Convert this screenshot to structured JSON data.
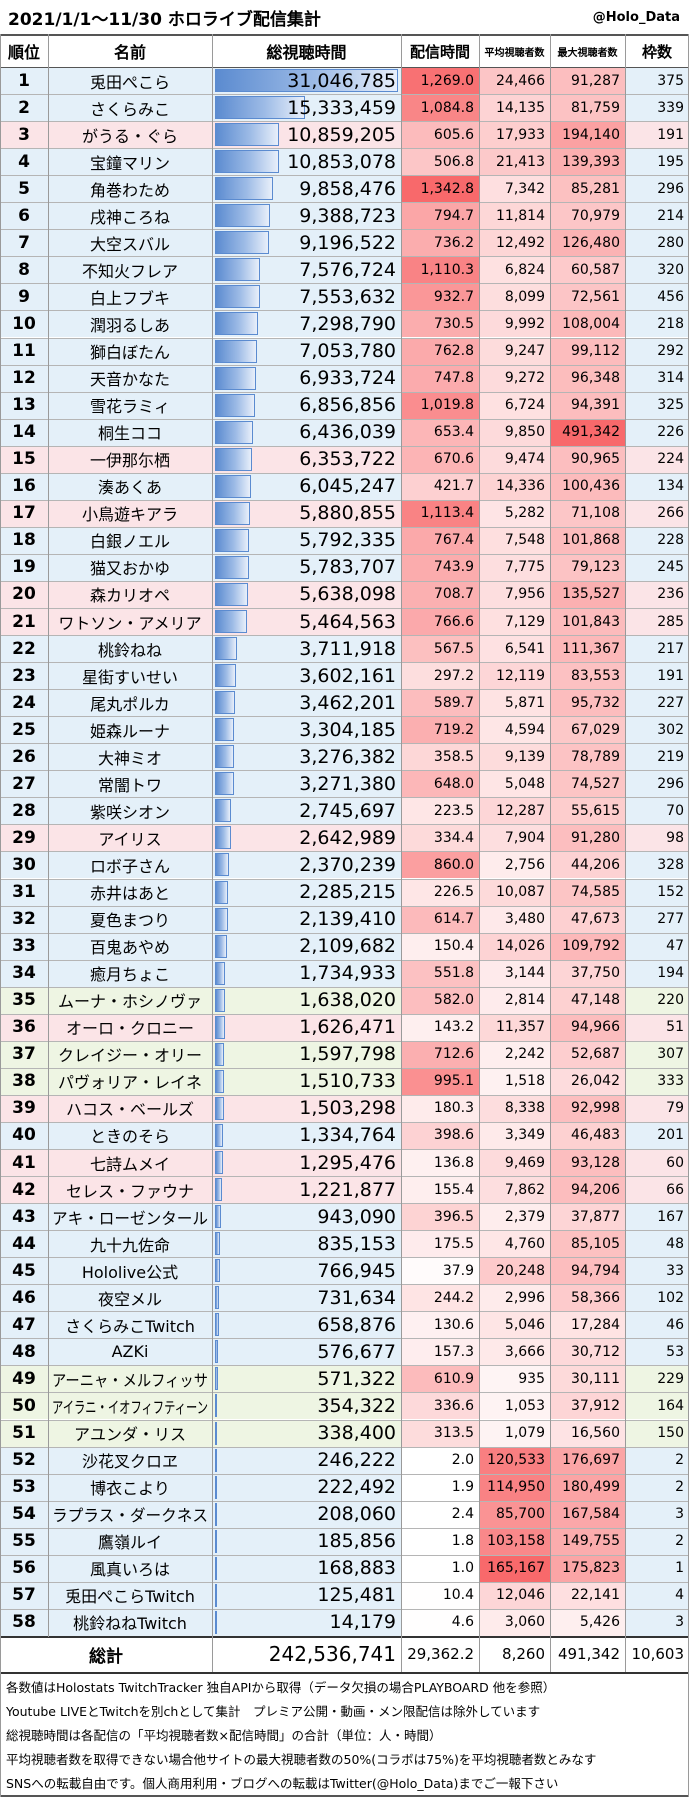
{
  "header": {
    "title": "2021/1/1～11/30 ホロライブ配信集計",
    "account": "@Holo_Data"
  },
  "table": {
    "columns": [
      "順位",
      "名前",
      "総視聴時間",
      "配信時間",
      "平均視聴者数",
      "最大視聴者数",
      "枠数"
    ],
    "rows": [
      [
        "1",
        "兎田ぺこら",
        "31,046,785",
        "1,269.0",
        "24,466",
        "91,287",
        "375"
      ],
      [
        "2",
        "さくらみこ",
        "15,333,459",
        "1,084.8",
        "14,135",
        "81,759",
        "339"
      ],
      [
        "3",
        "がうる・ぐら",
        "10,859,205",
        "605.6",
        "17,933",
        "194,140",
        "191"
      ],
      [
        "4",
        "宝鐘マリン",
        "10,853,078",
        "506.8",
        "21,413",
        "139,393",
        "195"
      ],
      [
        "5",
        "角巻わため",
        "9,858,476",
        "1,342.8",
        "7,342",
        "85,281",
        "296"
      ],
      [
        "6",
        "戌神ころね",
        "9,388,723",
        "794.7",
        "11,814",
        "70,979",
        "214"
      ],
      [
        "7",
        "大空スバル",
        "9,196,522",
        "736.2",
        "12,492",
        "126,480",
        "280"
      ],
      [
        "8",
        "不知火フレア",
        "7,576,724",
        "1,110.3",
        "6,824",
        "60,587",
        "320"
      ],
      [
        "9",
        "白上フブキ",
        "7,553,632",
        "932.7",
        "8,099",
        "72,561",
        "456"
      ],
      [
        "10",
        "潤羽るしあ",
        "7,298,790",
        "730.5",
        "9,992",
        "108,004",
        "218"
      ],
      [
        "11",
        "獅白ぼたん",
        "7,053,780",
        "762.8",
        "9,247",
        "99,112",
        "292"
      ],
      [
        "12",
        "天音かなた",
        "6,933,724",
        "747.8",
        "9,272",
        "96,348",
        "314"
      ],
      [
        "13",
        "雪花ラミィ",
        "6,856,856",
        "1,019.8",
        "6,724",
        "94,391",
        "325"
      ],
      [
        "14",
        "桐生ココ",
        "6,436,039",
        "653.4",
        "9,850",
        "491,342",
        "226"
      ],
      [
        "15",
        "一伊那尓栖",
        "6,353,722",
        "670.6",
        "9,474",
        "90,965",
        "224"
      ],
      [
        "16",
        "湊あくあ",
        "6,045,247",
        "421.7",
        "14,336",
        "100,436",
        "134"
      ],
      [
        "17",
        "小鳥遊キアラ",
        "5,880,855",
        "1,113.4",
        "5,282",
        "71,108",
        "266"
      ],
      [
        "18",
        "白銀ノエル",
        "5,792,335",
        "767.4",
        "7,548",
        "101,868",
        "228"
      ],
      [
        "19",
        "猫又おかゆ",
        "5,783,707",
        "743.9",
        "7,775",
        "79,123",
        "245"
      ],
      [
        "20",
        "森カリオペ",
        "5,638,098",
        "708.7",
        "7,956",
        "135,527",
        "236"
      ],
      [
        "21",
        "ワトソン・アメリア",
        "5,464,563",
        "766.6",
        "7,129",
        "101,843",
        "285"
      ],
      [
        "22",
        "桃鈴ねね",
        "3,711,918",
        "567.5",
        "6,541",
        "111,367",
        "217"
      ],
      [
        "23",
        "星街すいせい",
        "3,602,161",
        "297.2",
        "12,119",
        "83,553",
        "191"
      ],
      [
        "24",
        "尾丸ポルカ",
        "3,462,201",
        "589.7",
        "5,871",
        "95,732",
        "227"
      ],
      [
        "25",
        "姫森ルーナ",
        "3,304,185",
        "719.2",
        "4,594",
        "67,029",
        "302"
      ],
      [
        "26",
        "大神ミオ",
        "3,276,382",
        "358.5",
        "9,139",
        "78,789",
        "219"
      ],
      [
        "27",
        "常闇トワ",
        "3,271,380",
        "648.0",
        "5,048",
        "74,527",
        "296"
      ],
      [
        "28",
        "紫咲シオン",
        "2,745,697",
        "223.5",
        "12,287",
        "55,615",
        "70"
      ],
      [
        "29",
        "アイリス",
        "2,642,989",
        "334.4",
        "7,904",
        "91,280",
        "98"
      ],
      [
        "30",
        "ロボ子さん",
        "2,370,239",
        "860.0",
        "2,756",
        "44,206",
        "328"
      ],
      [
        "31",
        "赤井はあと",
        "2,285,215",
        "226.5",
        "10,087",
        "74,585",
        "152"
      ],
      [
        "32",
        "夏色まつり",
        "2,139,410",
        "614.7",
        "3,480",
        "47,673",
        "277"
      ],
      [
        "33",
        "百鬼あやめ",
        "2,109,682",
        "150.4",
        "14,026",
        "109,792",
        "47"
      ],
      [
        "34",
        "癒月ちょこ",
        "1,734,933",
        "551.8",
        "3,144",
        "37,750",
        "194"
      ],
      [
        "35",
        "ムーナ・ホシノヴァ",
        "1,638,020",
        "582.0",
        "2,814",
        "47,148",
        "220"
      ],
      [
        "36",
        "オーロ・クロニー",
        "1,626,471",
        "143.2",
        "11,357",
        "94,966",
        "51"
      ],
      [
        "37",
        "クレイジー・オリー",
        "1,597,798",
        "712.6",
        "2,242",
        "52,687",
        "307"
      ],
      [
        "38",
        "パヴォリア・レイネ",
        "1,510,733",
        "995.1",
        "1,518",
        "26,042",
        "333"
      ],
      [
        "39",
        "ハコス・ベールズ",
        "1,503,298",
        "180.3",
        "8,338",
        "92,998",
        "79"
      ],
      [
        "40",
        "ときのそら",
        "1,334,764",
        "398.6",
        "3,349",
        "46,483",
        "201"
      ],
      [
        "41",
        "七詩ムメイ",
        "1,295,476",
        "136.8",
        "9,469",
        "93,128",
        "60"
      ],
      [
        "42",
        "セレス・ファウナ",
        "1,221,877",
        "155.4",
        "7,862",
        "94,206",
        "66"
      ],
      [
        "43",
        "アキ・ローゼンタール",
        "943,090",
        "396.5",
        "2,379",
        "37,877",
        "167"
      ],
      [
        "44",
        "九十九佐命",
        "835,153",
        "175.5",
        "4,760",
        "85,105",
        "48"
      ],
      [
        "45",
        "Hololive公式",
        "766,945",
        "37.9",
        "20,248",
        "94,794",
        "33"
      ],
      [
        "46",
        "夜空メル",
        "731,634",
        "244.2",
        "2,996",
        "58,366",
        "102"
      ],
      [
        "47",
        "さくらみこTwitch",
        "658,876",
        "130.6",
        "5,046",
        "17,284",
        "46"
      ],
      [
        "48",
        "AZKi",
        "576,677",
        "157.3",
        "3,666",
        "30,712",
        "53"
      ],
      [
        "49",
        "アーニャ・メルフィッサ",
        "571,322",
        "610.9",
        "935",
        "30,111",
        "229"
      ],
      [
        "50",
        "アイラニ・イオフィフティーン",
        "354,322",
        "336.6",
        "1,053",
        "37,912",
        "164"
      ],
      [
        "51",
        "アユンダ・リス",
        "338,400",
        "313.5",
        "1,079",
        "16,560",
        "150"
      ],
      [
        "52",
        "沙花叉クロヱ",
        "246,222",
        "2.0",
        "120,533",
        "176,697",
        "2"
      ],
      [
        "53",
        "博衣こより",
        "222,492",
        "1.9",
        "114,950",
        "180,499",
        "2"
      ],
      [
        "54",
        "ラプラス・ダークネス",
        "208,060",
        "2.4",
        "85,700",
        "167,584",
        "3"
      ],
      [
        "55",
        "鷹嶺ルイ",
        "185,856",
        "1.8",
        "103,158",
        "149,755",
        "2"
      ],
      [
        "56",
        "風真いろは",
        "168,883",
        "1.0",
        "165,167",
        "175,823",
        "1"
      ],
      [
        "57",
        "兎田ぺこらTwitch",
        "125,481",
        "10.4",
        "12,046",
        "22,141",
        "4"
      ],
      [
        "58",
        "桃鈴ねねTwitch",
        "14,179",
        "4.6",
        "3,060",
        "5,426",
        "3"
      ]
    ],
    "row_colors": [
      "#e4f0f9",
      "#e4f0f9",
      "#fbe4e7",
      "#e4f0f9",
      "#e4f0f9",
      "#e4f0f9",
      "#e4f0f9",
      "#e4f0f9",
      "#e4f0f9",
      "#e4f0f9",
      "#e4f0f9",
      "#e4f0f9",
      "#e4f0f9",
      "#e4f0f9",
      "#fbe4e7",
      "#e4f0f9",
      "#fbe4e7",
      "#e4f0f9",
      "#e4f0f9",
      "#fbe4e7",
      "#fbe4e7",
      "#e4f0f9",
      "#e4f0f9",
      "#e4f0f9",
      "#e4f0f9",
      "#e4f0f9",
      "#e4f0f9",
      "#e4f0f9",
      "#fbe4e7",
      "#e4f0f9",
      "#e4f0f9",
      "#e4f0f9",
      "#e4f0f9",
      "#e4f0f9",
      "#eef5e3",
      "#fbe4e7",
      "#eef5e3",
      "#eef5e3",
      "#fbe4e7",
      "#e4f0f9",
      "#fbe4e7",
      "#fbe4e7",
      "#e4f0f9",
      "#e4f0f9",
      "#e4f0f9",
      "#e4f0f9",
      "#e4f0f9",
      "#e4f0f9",
      "#eef5e3",
      "#eef5e3",
      "#eef5e3",
      "#e4f0f9",
      "#e4f0f9",
      "#e4f0f9",
      "#e4f0f9",
      "#e4f0f9",
      "#e4f0f9",
      "#e4f0f9"
    ],
    "total": {
      "label": "総計",
      "values": [
        "242,536,741",
        "29,362.2",
        "8,260",
        "491,342",
        "10,603"
      ]
    }
  },
  "notes": [
    "各数値はHolostats TwitchTracker 独自APIから取得（データ欠損の場合PLAYBOARD 他を参照）",
    "Youtube LIVEとTwitchを別chとして集計　プレミア公開・動画・メン限配信は除外しています",
    "総視聴時間は各配信の「平均視聴者数×配信時間」の合計（単位：人・時間）",
    "平均視聴者数を取得できない場合他サイトの最大視聴者数の50%(コラボは75%)を平均視聴者数とみなす",
    "SNSへの転載自由です。個人商用利用・ブログへの転載はTwitter(@Holo_Data)までご一報下さい"
  ]
}
